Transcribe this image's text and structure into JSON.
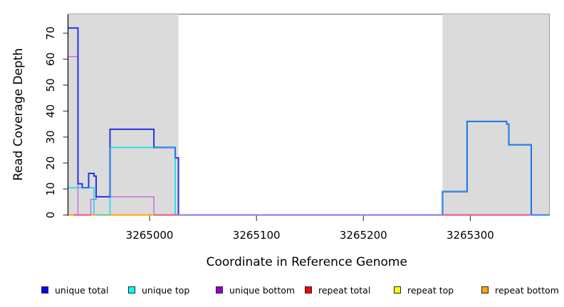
{
  "figure": {
    "xlabel": "Coordinate in Reference Genome",
    "ylabel": "Read Coverage Depth"
  },
  "legend": {
    "items": [
      {
        "label": "unique total",
        "color": "#0000FF"
      },
      {
        "label": "unique top",
        "color": "#00FFFF"
      },
      {
        "label": "unique bottom",
        "color": "#9400D3"
      },
      {
        "label": "repeat total",
        "color": "#FF0000"
      },
      {
        "label": "repeat top",
        "color": "#FFFF00"
      },
      {
        "label": "repeat bottom",
        "color": "#FFA500"
      }
    ]
  },
  "palette": {
    "shaded_region": "#DBDBDB",
    "plot_border": "#555555",
    "axis": "#000000",
    "tick": "#444444",
    "unique_total_line": "#2633E2",
    "unique_top_line": "#00DFE8",
    "unique_bottom_line": "#C46FD8",
    "repeat_total_line": "#E0557F",
    "repeat_top_line": "#FFFF00",
    "repeat_bottom_line": "#FFA500",
    "baseline_slate": "#8078E8",
    "baseline_green": "#5FC97E",
    "baseline_blue": "#2E7DFF"
  },
  "chart_data": {
    "type": "line",
    "subtype": "step-after",
    "title": "",
    "xlabel": "Coordinate in Reference Genome",
    "ylabel": "Read Coverage Depth",
    "xlim": [
      3264924,
      3265374
    ],
    "ylim": [
      0,
      77
    ],
    "grid": false,
    "legend_position": "bottom",
    "x_ticks": [
      {
        "value": 3265000,
        "label": "3265000"
      },
      {
        "value": 3265100,
        "label": "3265100"
      },
      {
        "value": 3265200,
        "label": "3265200"
      },
      {
        "value": 3265300,
        "label": "3265300"
      }
    ],
    "y_ticks": [
      {
        "value": 0,
        "label": "0"
      },
      {
        "value": 10,
        "label": "10"
      },
      {
        "value": 20,
        "label": "20"
      },
      {
        "value": 30,
        "label": "30"
      },
      {
        "value": 40,
        "label": "40"
      },
      {
        "value": 50,
        "label": "50"
      },
      {
        "value": 60,
        "label": "60"
      },
      {
        "value": 70,
        "label": "70"
      }
    ],
    "shaded_regions": [
      {
        "from": 3264924,
        "to": 3265027
      },
      {
        "from": 3265274,
        "to": 3265374
      }
    ],
    "series": [
      {
        "name": "repeat total",
        "color_key": "repeat_total_line",
        "points": [
          [
            3264924,
            0
          ],
          [
            3265374,
            0
          ]
        ]
      },
      {
        "name": "repeat top",
        "color_key": "repeat_top_line",
        "points": [
          [
            3264924,
            0
          ],
          [
            3265374,
            0
          ]
        ]
      },
      {
        "name": "repeat bottom",
        "color_key": "repeat_bottom_line",
        "points": [
          [
            3264924,
            0
          ],
          [
            3265374,
            0
          ]
        ]
      },
      {
        "name": "unique bottom",
        "color_key": "unique_bottom_line",
        "points": [
          [
            3264924,
            61
          ],
          [
            3264933,
            0
          ],
          [
            3264945,
            6
          ],
          [
            3264950,
            7
          ],
          [
            3265004,
            0
          ],
          [
            3265374,
            0
          ]
        ]
      },
      {
        "name": "unique top",
        "color_key": "unique_top_line",
        "points": [
          [
            3264924,
            10.5
          ],
          [
            3264948,
            0
          ],
          [
            3264963,
            26
          ],
          [
            3265024,
            0
          ],
          [
            3265274,
            9
          ],
          [
            3265297,
            36
          ],
          [
            3265334,
            35
          ],
          [
            3265336,
            27
          ],
          [
            3265357,
            0
          ],
          [
            3265374,
            0
          ]
        ]
      },
      {
        "name": "unique total",
        "color_key": "unique_total_line",
        "points": [
          [
            3264924,
            72
          ],
          [
            3264933,
            12
          ],
          [
            3264937,
            10.5
          ],
          [
            3264943,
            16
          ],
          [
            3264948,
            15
          ],
          [
            3264950,
            7
          ],
          [
            3264963,
            33
          ],
          [
            3265004,
            26
          ],
          [
            3265024,
            22
          ],
          [
            3265027,
            0
          ],
          [
            3265274,
            9
          ],
          [
            3265297,
            36
          ],
          [
            3265334,
            35
          ],
          [
            3265336,
            27
          ],
          [
            3265357,
            0
          ],
          [
            3265374,
            0
          ]
        ]
      }
    ],
    "baseline_segments": [
      {
        "from": 3264924,
        "to": 3264929,
        "color_key": "repeat_bottom_line"
      },
      {
        "from": 3264929,
        "to": 3264945,
        "color_key": "repeat_total_line"
      },
      {
        "from": 3264945,
        "to": 3264950,
        "color_key": "repeat_bottom_line"
      },
      {
        "from": 3264950,
        "to": 3264963,
        "color_key": "baseline_green"
      },
      {
        "from": 3264963,
        "to": 3265004,
        "color_key": "repeat_bottom_line"
      },
      {
        "from": 3265004,
        "to": 3265027,
        "color_key": "repeat_total_line"
      },
      {
        "from": 3265027,
        "to": 3265274,
        "color_key": "baseline_slate"
      },
      {
        "from": 3265274,
        "to": 3265357,
        "color_key": "repeat_total_line"
      },
      {
        "from": 3265357,
        "to": 3265374,
        "color_key": "baseline_blue"
      }
    ]
  }
}
